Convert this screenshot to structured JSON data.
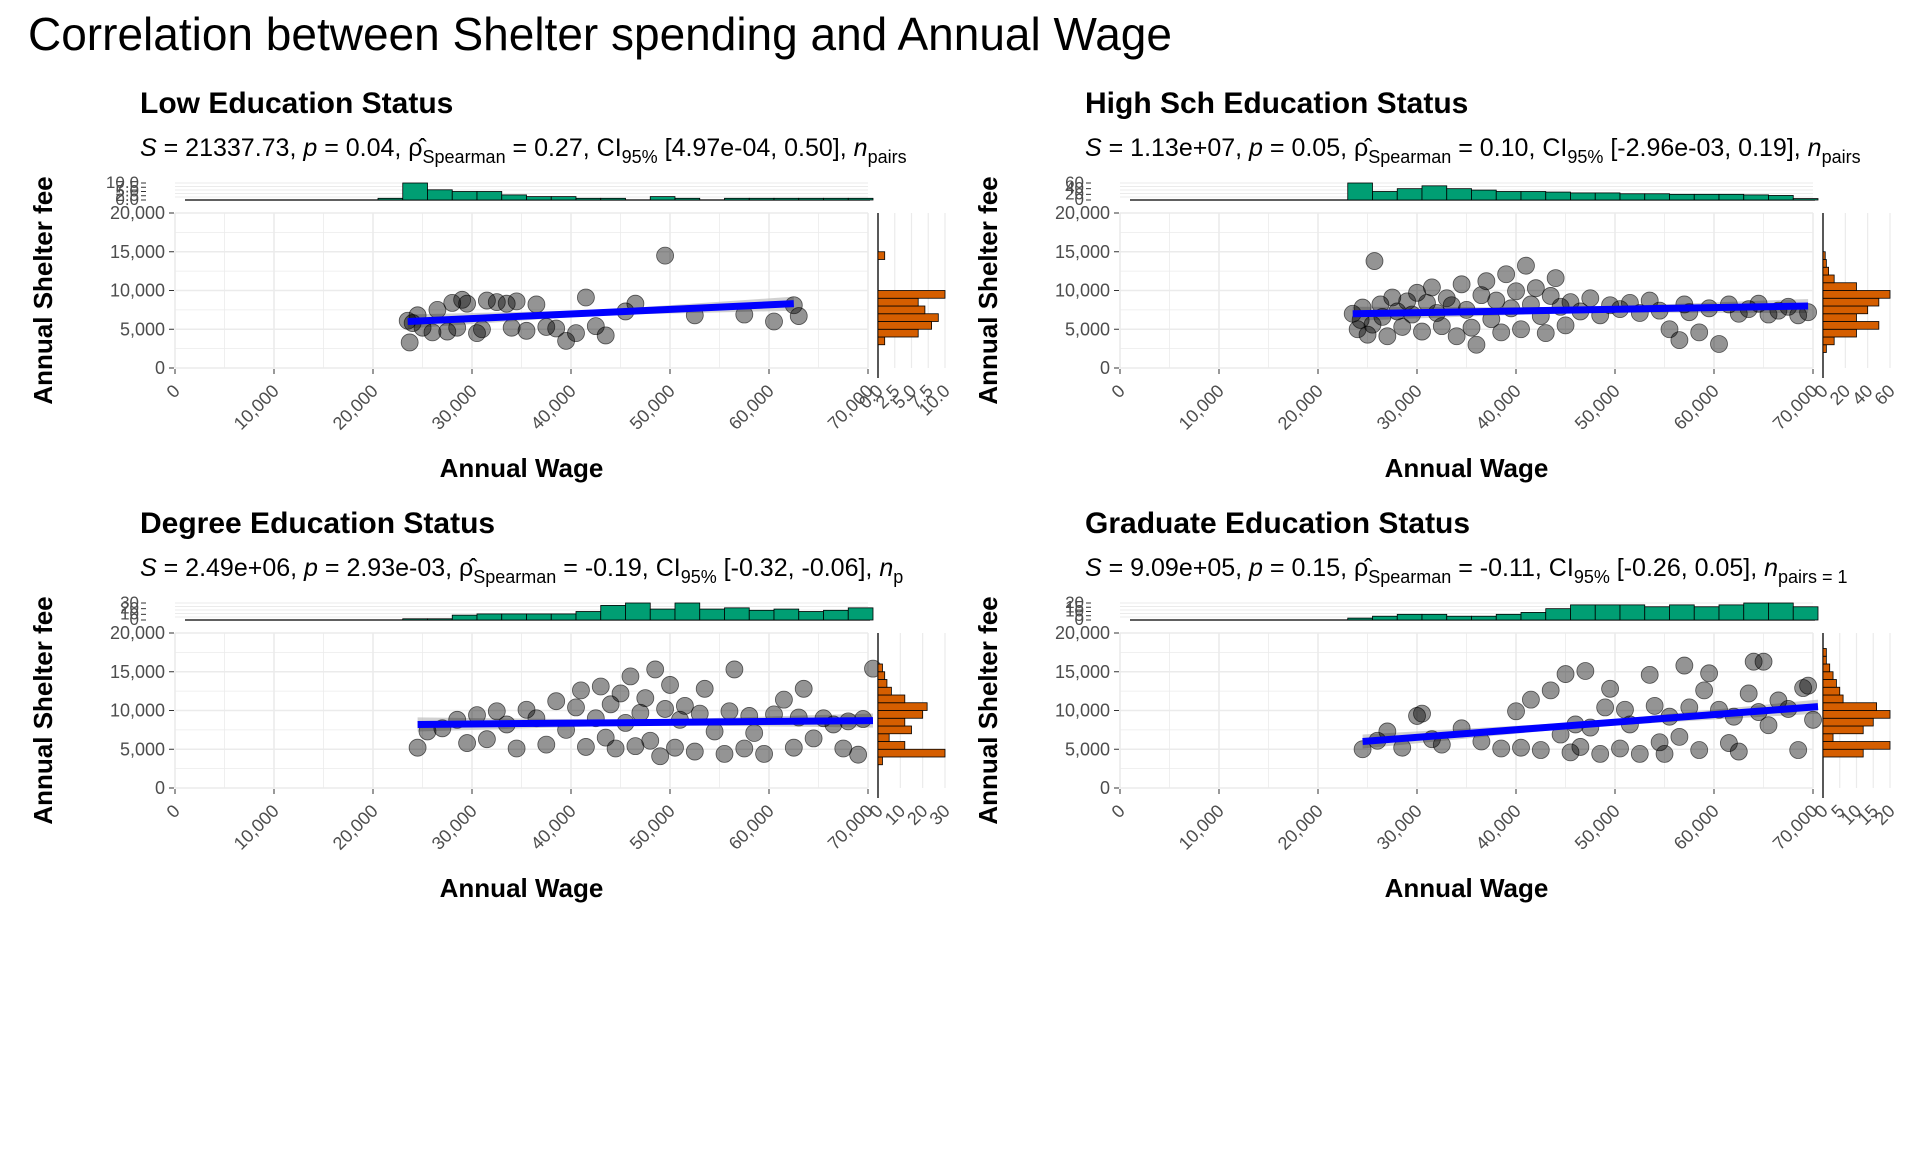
{
  "title": "Correlation between Shelter spending and Annual Wage",
  "colors": {
    "points": "#000000",
    "fit_line": "#0000ff",
    "ci_band": "#bdbdbd",
    "x_hist": "#009e73",
    "y_hist": "#d55e00",
    "grid": "#ebebeb"
  },
  "chart_data": [
    {
      "type": "scatter",
      "title": "Low Education Status",
      "subtitle": {
        "S": "21337.73",
        "p": "0.04",
        "rho": "0.27",
        "ci_lo": "4.97e-04",
        "ci_hi": "0.50",
        "tail": "pairs"
      },
      "xlabel": "Annual Wage",
      "ylabel": "Annual Shelter fee",
      "xlim": [
        0,
        70000
      ],
      "ylim": [
        0,
        20000
      ],
      "x_ticks": [
        "0",
        "10,000",
        "20,000",
        "30,000",
        "40,000",
        "50,000",
        "60,000",
        "70,000"
      ],
      "y_ticks": [
        "0",
        "5,000",
        "10,000",
        "15,000",
        "20,000"
      ],
      "fit": {
        "x0": 23000,
        "y0": 6000,
        "x1": 62000,
        "y1": 8300
      },
      "points": [
        [
          23000,
          6100
        ],
        [
          23500,
          5800
        ],
        [
          23200,
          3300
        ],
        [
          24000,
          6800
        ],
        [
          24500,
          5200
        ],
        [
          25500,
          4600
        ],
        [
          26000,
          7500
        ],
        [
          27000,
          4700
        ],
        [
          27500,
          8400
        ],
        [
          28000,
          5200
        ],
        [
          28500,
          8800
        ],
        [
          29000,
          8300
        ],
        [
          30000,
          4500
        ],
        [
          30500,
          5000
        ],
        [
          31000,
          8700
        ],
        [
          32000,
          8500
        ],
        [
          33000,
          8300
        ],
        [
          33500,
          5200
        ],
        [
          34000,
          8600
        ],
        [
          35000,
          4800
        ],
        [
          36000,
          8200
        ],
        [
          37000,
          5300
        ],
        [
          38000,
          5100
        ],
        [
          39000,
          3500
        ],
        [
          40000,
          4500
        ],
        [
          41000,
          9100
        ],
        [
          42000,
          5400
        ],
        [
          43000,
          4200
        ],
        [
          45000,
          7300
        ],
        [
          46000,
          8300
        ],
        [
          49000,
          14500
        ],
        [
          52000,
          6800
        ],
        [
          57000,
          6900
        ],
        [
          60000,
          6000
        ],
        [
          62000,
          8100
        ],
        [
          62500,
          6700
        ]
      ],
      "x_hist": {
        "bin_start": 20000,
        "bin_width": 2500,
        "counts": [
          1,
          10,
          6,
          5,
          5,
          3,
          2,
          2,
          1,
          1,
          0,
          2,
          1,
          0,
          1,
          1,
          1,
          1,
          1,
          1
        ]
      },
      "x_hist_ticks": [
        "0.0",
        "2.5",
        "5.0",
        "7.5",
        "10.0"
      ],
      "y_hist": {
        "bin_start": 0,
        "bin_width": 1000,
        "counts": [
          0,
          0,
          0,
          1,
          6,
          8,
          9,
          7,
          6,
          10,
          0,
          0,
          0,
          0,
          1,
          0,
          0,
          0,
          0,
          0
        ]
      },
      "y_hist_ticks": [
        "0.0",
        "2.5",
        "5.0",
        "7.5",
        "10.0"
      ]
    },
    {
      "type": "scatter",
      "title": "High Sch Education Status",
      "subtitle": {
        "S": "1.13e+07",
        "p": "0.05",
        "rho": "0.10",
        "ci_lo": "-2.96e-03",
        "ci_hi": "0.19",
        "tail": "pairs"
      },
      "xlabel": "Annual Wage",
      "ylabel": "Annual Shelter fee",
      "xlim": [
        0,
        70000
      ],
      "ylim": [
        0,
        20000
      ],
      "x_ticks": [
        "0",
        "10,000",
        "20,000",
        "30,000",
        "40,000",
        "50,000",
        "60,000",
        "70,000"
      ],
      "y_ticks": [
        "0",
        "5,000",
        "10,000",
        "15,000",
        "20,000"
      ],
      "fit": {
        "x0": 23000,
        "y0": 7000,
        "x1": 69000,
        "y1": 8000
      },
      "points": [
        [
          23000,
          7000
        ],
        [
          23500,
          5000
        ],
        [
          23800,
          6200
        ],
        [
          24000,
          7800
        ],
        [
          24500,
          4300
        ],
        [
          25000,
          5600
        ],
        [
          25200,
          13800
        ],
        [
          25800,
          8200
        ],
        [
          26000,
          6600
        ],
        [
          26500,
          4100
        ],
        [
          27000,
          9100
        ],
        [
          27500,
          7300
        ],
        [
          28000,
          5300
        ],
        [
          28500,
          8600
        ],
        [
          29000,
          6900
        ],
        [
          29500,
          9700
        ],
        [
          30000,
          4700
        ],
        [
          30500,
          8400
        ],
        [
          31000,
          10400
        ],
        [
          31500,
          7100
        ],
        [
          32000,
          5400
        ],
        [
          32500,
          9000
        ],
        [
          33000,
          8100
        ],
        [
          33500,
          4100
        ],
        [
          34000,
          10800
        ],
        [
          34500,
          7500
        ],
        [
          35000,
          5200
        ],
        [
          35500,
          3000
        ],
        [
          36000,
          9400
        ],
        [
          36500,
          11200
        ],
        [
          37000,
          6300
        ],
        [
          37500,
          8700
        ],
        [
          38000,
          4600
        ],
        [
          38500,
          12100
        ],
        [
          39000,
          7700
        ],
        [
          39500,
          9900
        ],
        [
          40000,
          5000
        ],
        [
          40500,
          13200
        ],
        [
          41000,
          8200
        ],
        [
          41500,
          10300
        ],
        [
          42000,
          6700
        ],
        [
          42500,
          4500
        ],
        [
          43000,
          9300
        ],
        [
          43500,
          11600
        ],
        [
          44000,
          7900
        ],
        [
          44500,
          5500
        ],
        [
          45000,
          8500
        ],
        [
          46000,
          7300
        ],
        [
          47000,
          9000
        ],
        [
          48000,
          6800
        ],
        [
          49000,
          8100
        ],
        [
          50000,
          7600
        ],
        [
          51000,
          8400
        ],
        [
          52000,
          7100
        ],
        [
          53000,
          8700
        ],
        [
          54000,
          7400
        ],
        [
          55000,
          5000
        ],
        [
          56000,
          3600
        ],
        [
          56500,
          8200
        ],
        [
          57000,
          7200
        ],
        [
          58000,
          4600
        ],
        [
          59000,
          7700
        ],
        [
          60000,
          3100
        ],
        [
          61000,
          8200
        ],
        [
          62000,
          7000
        ],
        [
          63000,
          7600
        ],
        [
          64000,
          8300
        ],
        [
          65000,
          6900
        ],
        [
          66000,
          7400
        ],
        [
          67000,
          7900
        ],
        [
          68000,
          6800
        ],
        [
          69000,
          7200
        ]
      ],
      "x_hist": {
        "bin_start": 22500,
        "bin_width": 2500,
        "counts": [
          60,
          30,
          40,
          50,
          40,
          35,
          30,
          30,
          28,
          25,
          25,
          22,
          22,
          20,
          20,
          20,
          18,
          16,
          5
        ]
      },
      "x_hist_ticks": [
        "0",
        "20",
        "40",
        "60"
      ],
      "y_hist": {
        "bin_start": 0,
        "bin_width": 1000,
        "counts": [
          0,
          0,
          3,
          10,
          30,
          50,
          30,
          40,
          50,
          60,
          30,
          10,
          5,
          3,
          2,
          0,
          0,
          0,
          0,
          0
        ]
      },
      "y_hist_ticks": [
        "0",
        "20",
        "40",
        "60"
      ]
    },
    {
      "type": "scatter",
      "title": "Degree Education Status",
      "subtitle": {
        "S": "2.49e+06",
        "p": "2.93e-03",
        "rho": "-0.19",
        "ci_lo": "-0.32",
        "ci_hi": "-0.06",
        "tail": "p"
      },
      "xlabel": "Annual Wage",
      "ylabel": "Annual Shelter fee",
      "xlim": [
        0,
        70000
      ],
      "ylim": [
        0,
        20000
      ],
      "x_ticks": [
        "0",
        "10,000",
        "20,000",
        "30,000",
        "40,000",
        "50,000",
        "60,000",
        "70,000"
      ],
      "y_ticks": [
        "0",
        "5,000",
        "10,000",
        "15,000",
        "20,000"
      ],
      "fit": {
        "x0": 24000,
        "y0": 8200,
        "x1": 70000,
        "y1": 8700
      },
      "points": [
        [
          24000,
          5200
        ],
        [
          25000,
          7300
        ],
        [
          26500,
          7700
        ],
        [
          28000,
          8800
        ],
        [
          29000,
          5800
        ],
        [
          30000,
          9400
        ],
        [
          31000,
          6300
        ],
        [
          32000,
          9900
        ],
        [
          33000,
          8200
        ],
        [
          34000,
          5100
        ],
        [
          35000,
          10100
        ],
        [
          36000,
          9000
        ],
        [
          37000,
          5600
        ],
        [
          38000,
          11200
        ],
        [
          39000,
          7500
        ],
        [
          40000,
          10400
        ],
        [
          40500,
          12600
        ],
        [
          41000,
          5300
        ],
        [
          42000,
          9000
        ],
        [
          42500,
          13100
        ],
        [
          43000,
          6500
        ],
        [
          43500,
          10800
        ],
        [
          44000,
          5100
        ],
        [
          44500,
          12200
        ],
        [
          45000,
          8400
        ],
        [
          45500,
          14400
        ],
        [
          46000,
          5400
        ],
        [
          46500,
          9700
        ],
        [
          47000,
          11600
        ],
        [
          47500,
          6100
        ],
        [
          48000,
          15300
        ],
        [
          48500,
          4100
        ],
        [
          49000,
          10200
        ],
        [
          49500,
          13300
        ],
        [
          50000,
          5200
        ],
        [
          50500,
          8800
        ],
        [
          51000,
          10600
        ],
        [
          52000,
          4700
        ],
        [
          52500,
          9600
        ],
        [
          53000,
          12800
        ],
        [
          54000,
          7300
        ],
        [
          55000,
          4400
        ],
        [
          55500,
          9900
        ],
        [
          56000,
          15300
        ],
        [
          57000,
          5100
        ],
        [
          57500,
          9300
        ],
        [
          58000,
          7100
        ],
        [
          59000,
          4400
        ],
        [
          60000,
          9500
        ],
        [
          61000,
          11400
        ],
        [
          62000,
          5200
        ],
        [
          62500,
          9100
        ],
        [
          63000,
          12800
        ],
        [
          64000,
          6400
        ],
        [
          65000,
          9000
        ],
        [
          66000,
          8200
        ],
        [
          67000,
          5100
        ],
        [
          67500,
          8600
        ],
        [
          68500,
          4300
        ],
        [
          69000,
          8900
        ],
        [
          70000,
          15400
        ]
      ],
      "x_hist": {
        "bin_start": 22500,
        "bin_width": 2500,
        "counts": [
          1,
          1,
          4,
          5,
          5,
          5,
          5,
          7,
          12,
          14,
          9,
          14,
          9,
          10,
          8,
          9,
          7,
          8,
          10
        ]
      },
      "x_hist_ticks": [
        "0",
        "10",
        "20",
        "30"
      ],
      "y_hist": {
        "bin_start": 0,
        "bin_width": 1000,
        "counts": [
          0,
          0,
          0,
          2,
          30,
          12,
          5,
          15,
          12,
          20,
          22,
          12,
          6,
          4,
          3,
          2,
          0,
          0,
          0,
          0
        ]
      },
      "y_hist_ticks": [
        "0",
        "10",
        "20",
        "30"
      ]
    },
    {
      "type": "scatter",
      "title": "Graduate Education Status",
      "subtitle": {
        "S": "9.09e+05",
        "p": "0.15",
        "rho": "-0.11",
        "ci_lo": "-0.26",
        "ci_hi": "0.05",
        "tail": "pairs = 1"
      },
      "xlabel": "Annual Wage",
      "ylabel": "Annual Shelter fee",
      "xlim": [
        0,
        70000
      ],
      "ylim": [
        0,
        20000
      ],
      "x_ticks": [
        "0",
        "10,000",
        "20,000",
        "30,000",
        "40,000",
        "50,000",
        "60,000",
        "70,000"
      ],
      "y_ticks": [
        "0",
        "5,000",
        "10,000",
        "15,000",
        "20,000"
      ],
      "fit": {
        "x0": 24000,
        "y0": 6000,
        "x1": 70000,
        "y1": 10500
      },
      "points": [
        [
          24000,
          5000
        ],
        [
          25500,
          6100
        ],
        [
          26500,
          7300
        ],
        [
          28000,
          5200
        ],
        [
          29500,
          9300
        ],
        [
          30000,
          9600
        ],
        [
          31000,
          6300
        ],
        [
          32000,
          5600
        ],
        [
          34000,
          7700
        ],
        [
          36000,
          6000
        ],
        [
          38000,
          5100
        ],
        [
          39500,
          9900
        ],
        [
          40000,
          5200
        ],
        [
          41000,
          11400
        ],
        [
          42000,
          4900
        ],
        [
          43000,
          12600
        ],
        [
          44000,
          6900
        ],
        [
          44500,
          14700
        ],
        [
          45000,
          4600
        ],
        [
          45500,
          8200
        ],
        [
          46000,
          5300
        ],
        [
          46500,
          15100
        ],
        [
          47000,
          7800
        ],
        [
          48000,
          4400
        ],
        [
          48500,
          10400
        ],
        [
          49000,
          12800
        ],
        [
          50000,
          5100
        ],
        [
          50500,
          10100
        ],
        [
          51000,
          8200
        ],
        [
          52000,
          4400
        ],
        [
          53000,
          14600
        ],
        [
          53500,
          10600
        ],
        [
          54000,
          5900
        ],
        [
          54500,
          4400
        ],
        [
          55000,
          9200
        ],
        [
          56000,
          6600
        ],
        [
          56500,
          15800
        ],
        [
          57000,
          10400
        ],
        [
          58000,
          4900
        ],
        [
          58500,
          12600
        ],
        [
          59000,
          14800
        ],
        [
          60000,
          10100
        ],
        [
          61000,
          5800
        ],
        [
          61500,
          9200
        ],
        [
          62000,
          4700
        ],
        [
          63000,
          12200
        ],
        [
          63500,
          16300
        ],
        [
          64000,
          9800
        ],
        [
          64500,
          16300
        ],
        [
          65000,
          8100
        ],
        [
          66000,
          11300
        ],
        [
          67000,
          10200
        ],
        [
          68000,
          4900
        ],
        [
          68500,
          12900
        ],
        [
          69000,
          13200
        ],
        [
          69500,
          8800
        ]
      ],
      "x_hist": {
        "bin_start": 22500,
        "bin_width": 2500,
        "counts": [
          1,
          2,
          3,
          3,
          2,
          2,
          3,
          4,
          6,
          8,
          8,
          8,
          7,
          8,
          7,
          8,
          9,
          9,
          7
        ]
      },
      "x_hist_ticks": [
        "0",
        "5",
        "10",
        "15",
        "20"
      ],
      "y_hist": {
        "bin_start": 0,
        "bin_width": 1000,
        "counts": [
          0,
          0,
          0,
          0,
          12,
          20,
          3,
          12,
          15,
          20,
          16,
          6,
          5,
          4,
          3,
          2,
          1,
          1,
          0,
          0
        ]
      },
      "y_hist_ticks": [
        "0",
        "5",
        "10",
        "15",
        "20"
      ]
    }
  ]
}
